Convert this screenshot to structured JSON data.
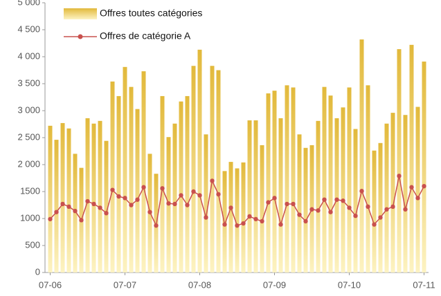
{
  "chart_data": {
    "type": "bar+line",
    "categories": [
      "07-06",
      null,
      null,
      null,
      null,
      null,
      null,
      null,
      null,
      null,
      null,
      null,
      "07-07",
      null,
      null,
      null,
      null,
      null,
      null,
      null,
      null,
      null,
      null,
      null,
      "07-08",
      null,
      null,
      null,
      null,
      null,
      null,
      null,
      null,
      null,
      null,
      null,
      "07-09",
      null,
      null,
      null,
      null,
      null,
      null,
      null,
      null,
      null,
      null,
      null,
      "07-10",
      null,
      null,
      null,
      null,
      null,
      null,
      null,
      null,
      null,
      null,
      null,
      "07-11"
    ],
    "series": [
      {
        "name": "Offres toutes catégories",
        "type": "bar",
        "color": "#e2b93b",
        "color_bottom": "#fdf3c2",
        "values": [
          2720,
          2460,
          2770,
          2670,
          2200,
          1940,
          2860,
          2760,
          2810,
          2440,
          3540,
          3270,
          3810,
          3440,
          3030,
          3730,
          2200,
          1830,
          3270,
          2510,
          2760,
          3170,
          3270,
          3830,
          4130,
          2560,
          3830,
          3750,
          1880,
          2050,
          1930,
          2040,
          2820,
          2820,
          2360,
          3320,
          3370,
          2860,
          3470,
          3430,
          2560,
          2310,
          2360,
          2810,
          3440,
          3280,
          2860,
          3060,
          3430,
          2660,
          4320,
          3470,
          2260,
          2400,
          2760,
          2960,
          4140,
          2920,
          4220,
          3070,
          3910
        ]
      },
      {
        "name": "Offres de catégorie A",
        "type": "line",
        "color": "#c9504d",
        "values": [
          990,
          1120,
          1270,
          1220,
          1140,
          970,
          1320,
          1270,
          1200,
          1100,
          1530,
          1410,
          1380,
          1250,
          1350,
          1580,
          1120,
          870,
          1560,
          1280,
          1270,
          1430,
          1250,
          1500,
          1430,
          1020,
          1700,
          1450,
          890,
          1200,
          870,
          910,
          1040,
          990,
          950,
          1300,
          1380,
          890,
          1270,
          1270,
          1070,
          950,
          1170,
          1150,
          1350,
          1120,
          1350,
          1330,
          1200,
          1050,
          1510,
          1220,
          890,
          1020,
          1170,
          1220,
          1790,
          1170,
          1580,
          1380,
          1600
        ]
      }
    ],
    "ylim": [
      0,
      5000
    ],
    "yticks": [
      0,
      500,
      {
        "value": 1000,
        "label": "1000"
      },
      {
        "value": 1500,
        "label": "1500"
      },
      {
        "value": 2000,
        "label": "2 000"
      },
      {
        "value": 2500,
        "label": "2 500"
      },
      {
        "value": 3000,
        "label": "3 000"
      },
      {
        "value": 3500,
        "label": "3 500"
      },
      {
        "value": 4000,
        "label": "4 000"
      },
      {
        "value": 4500,
        "label": "4 500"
      },
      {
        "value": 5000,
        "label": "5 000"
      }
    ],
    "legend": "upper left",
    "grid": false
  }
}
